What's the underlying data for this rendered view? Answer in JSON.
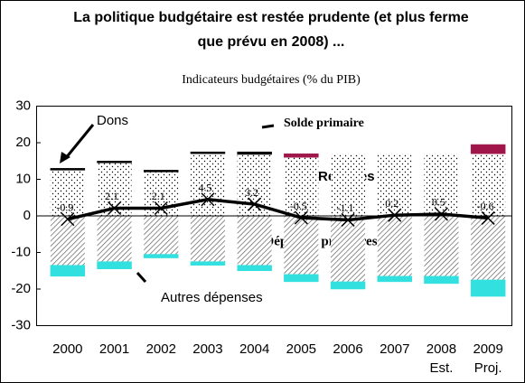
{
  "chart_data": {
    "type": "stacked_bar_line",
    "title": [
      "La politique budgétaire est restée prudente (et plus ferme",
      "que prévu en 2008) ..."
    ],
    "subtitle": "Indicateurs budgétaires (% du PIB)",
    "categories": [
      "2000",
      "2001",
      "2002",
      "2003",
      "2004",
      "2005",
      "2006",
      "2007",
      "2008",
      "2009"
    ],
    "category_notes": [
      null,
      null,
      null,
      null,
      null,
      null,
      null,
      null,
      "Est.",
      "Proj."
    ],
    "series": [
      {
        "name": "Recettes",
        "color": "#000000",
        "pattern": "dots",
        "values": [
          12.5,
          14.5,
          12,
          17,
          16.8,
          16,
          17,
          17,
          17,
          17
        ]
      },
      {
        "name": "Dons",
        "color": "#000000",
        "values": [
          0.5,
          0.5,
          0.5,
          0.5,
          0.7,
          null,
          null,
          null,
          null,
          null
        ]
      },
      {
        "name": "Solde primaire",
        "color": "#a0164a",
        "values": [
          null,
          null,
          null,
          null,
          null,
          1,
          null,
          null,
          null,
          2.5
        ]
      },
      {
        "name": "Dépenses primaires",
        "color": "#555555",
        "pattern": "hatch",
        "values": [
          -13.5,
          -12.5,
          -10.5,
          -12.5,
          -13.5,
          -16,
          -18,
          -16.5,
          -16.5,
          -17.5
        ]
      },
      {
        "name": "Autres dépenses",
        "color": "#33e0e0",
        "values": [
          -3,
          -2,
          -1,
          -1,
          -1.5,
          -2,
          -2,
          -1.5,
          -2,
          -4.5
        ]
      },
      {
        "type": "line",
        "color": "#000000",
        "values": [
          -0.9,
          2.1,
          2.1,
          4.5,
          3.2,
          -0.5,
          -1.1,
          0.2,
          0.5,
          -0.6
        ]
      }
    ],
    "ylim": [
      -30,
      30
    ],
    "yticks": [
      -30,
      -20,
      -10,
      0,
      10,
      20,
      30
    ]
  }
}
